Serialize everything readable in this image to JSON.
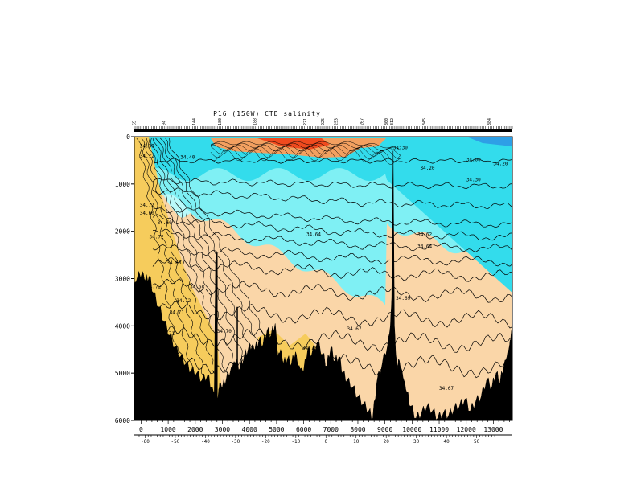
{
  "chart_data": {
    "type": "heatmap",
    "title": "P16 (150W) CTD salinity",
    "x_axis": {
      "ticks": [
        "0",
        "1000",
        "2000",
        "3000",
        "4000",
        "5000",
        "6000",
        "7000",
        "8000",
        "9000",
        "10000",
        "11000",
        "12000",
        "13000"
      ],
      "tick_values": [
        0,
        1000,
        2000,
        3000,
        4000,
        5000,
        6000,
        7000,
        8000,
        9000,
        10000,
        11000,
        12000,
        13000
      ],
      "range": [
        -250,
        13700
      ]
    },
    "y_axis": {
      "ticks": [
        "0",
        "1000",
        "2000",
        "3000",
        "4000",
        "5000",
        "6000"
      ],
      "tick_values": [
        0,
        1000,
        2000,
        3000,
        4000,
        5000,
        6000
      ],
      "range": [
        0,
        6000
      ],
      "inverted": true
    },
    "latitude_axis": {
      "ticks": [
        "-60",
        "-50",
        "-40",
        "-30",
        "-20",
        "-10",
        "0",
        "10",
        "20",
        "30",
        "40",
        "50"
      ],
      "tick_values": [
        -60,
        -50,
        -40,
        -30,
        -20,
        -10,
        0,
        10,
        20,
        30,
        40,
        50
      ]
    },
    "station_labels": [
      "65",
      "94",
      "144",
      "180",
      "188",
      "221",
      "225",
      "253",
      "267",
      "300",
      "312",
      "345",
      "384"
    ],
    "station_positions_km": [
      -200,
      900,
      2000,
      2950,
      4250,
      6100,
      6750,
      7250,
      8200,
      9100,
      9300,
      10500,
      12900
    ],
    "contour_levels": [
      "34.00",
      "34.20",
      "34.30",
      "34.40",
      "34.50",
      "34.60",
      "34.62",
      "34.64",
      "34.67",
      "34.68",
      "34.69",
      "34.70",
      "34.71",
      "34.72"
    ],
    "contour_labels": [
      {
        "text": "34.30",
        "x": -50,
        "z": 230
      },
      {
        "text": "34.72",
        "x": -50,
        "z": 440
      },
      {
        "text": "34.40",
        "x": 1450,
        "z": 470
      },
      {
        "text": "34.72",
        "x": -50,
        "z": 1480
      },
      {
        "text": "34.60",
        "x": -50,
        "z": 1650
      },
      {
        "text": "34.60",
        "x": 600,
        "z": 1850
      },
      {
        "text": "34.72",
        "x": 300,
        "z": 2150
      },
      {
        "text": "34.68",
        "x": 950,
        "z": 2700
      },
      {
        "text": "34.72",
        "x": 200,
        "z": 3200
      },
      {
        "text": "34.71",
        "x": 1050,
        "z": 3750
      },
      {
        "text": "34.71",
        "x": 700,
        "z": 4200
      },
      {
        "text": "34.68",
        "x": 1800,
        "z": 3200
      },
      {
        "text": "34.72",
        "x": 1300,
        "z": 3500
      },
      {
        "text": "34.70",
        "x": 2800,
        "z": 4150
      },
      {
        "text": "34.64",
        "x": 6100,
        "z": 2100
      },
      {
        "text": "34.67",
        "x": 7600,
        "z": 4100
      },
      {
        "text": "34.70",
        "x": 5950,
        "z": 4500
      },
      {
        "text": "34.69",
        "x": 9400,
        "z": 3450
      },
      {
        "text": "34.62",
        "x": 10200,
        "z": 2100
      },
      {
        "text": "34.64",
        "x": 10200,
        "z": 2350
      },
      {
        "text": "34.30",
        "x": 9300,
        "z": 260
      },
      {
        "text": "34.20",
        "x": 10300,
        "z": 700
      },
      {
        "text": "34.00",
        "x": 12000,
        "z": 520
      },
      {
        "text": "34.20",
        "x": 13000,
        "z": 600
      },
      {
        "text": "34.30",
        "x": 12000,
        "z": 940
      },
      {
        "text": "34.67",
        "x": 11000,
        "z": 5350
      }
    ],
    "colors": {
      "deep_blue": "#2e9fe6",
      "cyan": "#33dcec",
      "light_cyan": "#7ff0f4",
      "pale_cyan": "#b9fafa",
      "peach": "#fad6a8",
      "gold": "#f6cc5c",
      "orange": "#f3a060",
      "red_orange": "#f04a1e",
      "seafloor": "#000000"
    },
    "bottom_depth": {
      "x": [
        -250,
        -150,
        50,
        150,
        300,
        450,
        650,
        850,
        1050,
        1250,
        1450,
        1650,
        1850,
        2050,
        2250,
        2450,
        2600,
        2700,
        2750,
        2800,
        2850,
        2900,
        3000,
        3150,
        3300,
        3400,
        3500,
        3650,
        3800,
        3950,
        4100,
        4200,
        4350,
        4500,
        4650,
        4800,
        4950,
        5050,
        5150,
        5250,
        5400,
        5550,
        5700,
        5800,
        5900,
        6000,
        6150,
        6300,
        6500,
        6700,
        6850,
        7000,
        7150,
        7300,
        7450,
        7600,
        7800,
        8000,
        8200,
        8400,
        8550,
        8700,
        8900,
        9100,
        9200,
        9250,
        9300,
        9350,
        9400,
        9450,
        9500,
        9600,
        9700,
        9800,
        9950,
        10150,
        10350,
        10550,
        10750,
        10950,
        11150,
        11350,
        11550,
        11750,
        11950,
        12150,
        12350,
        12550,
        12750,
        12950,
        13100,
        13250,
        13400,
        13500,
        13600,
        13650,
        13700
      ],
      "z": [
        3150,
        3000,
        2850,
        3050,
        2950,
        3300,
        3600,
        3900,
        4200,
        4450,
        4650,
        4800,
        4950,
        5000,
        5150,
        5050,
        5300,
        5400,
        2600,
        5600,
        5450,
        5200,
        5300,
        5100,
        4950,
        4800,
        4750,
        4900,
        4650,
        4500,
        4400,
        4500,
        4300,
        4400,
        4100,
        4200,
        3950,
        4650,
        4500,
        4800,
        4700,
        4800,
        4550,
        4850,
        4900,
        4950,
        4500,
        4600,
        4350,
        4600,
        4850,
        4450,
        4750,
        4650,
        5000,
        5150,
        5300,
        5500,
        5650,
        5800,
        5950,
        5200,
        4800,
        4400,
        4000,
        3400,
        300,
        4000,
        4600,
        4950,
        4700,
        4900,
        5150,
        5400,
        5700,
        5950,
        5850,
        5700,
        5800,
        5950,
        5850,
        5900,
        5750,
        5700,
        5550,
        5800,
        5600,
        5500,
        5150,
        5300,
        5000,
        5200,
        4800,
        4650,
        4400,
        4200,
        4000
      ]
    }
  }
}
